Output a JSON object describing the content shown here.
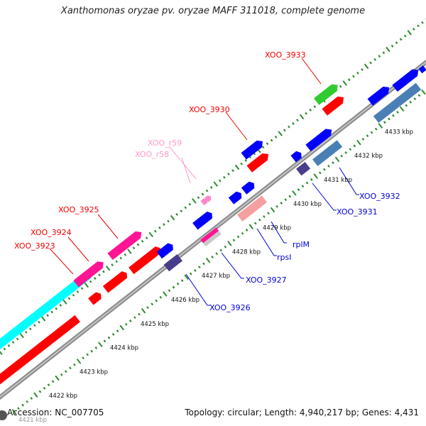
{
  "title": "Xanthomonas oryzae pv. oryzae MAFF 311018, complete genome",
  "footer": {
    "accession": "Accession: NC_007705",
    "summary": "Topology: circular; Length: 4,940,217 bp; Genes: 4,431"
  },
  "scale_labels": [
    "4421 kbp",
    "4422 kbp",
    "4423 kbp",
    "4424 kbp",
    "4425 kbp",
    "4426 kbp",
    "4427 kbp",
    "4428 kbp",
    "4429 kbp",
    "4430 kbp",
    "4431 kbp",
    "4432 kbp",
    "4433 kbp"
  ],
  "gene_labels": {
    "XOO_3923": "XOO_3923",
    "XOO_3924": "XOO_3924",
    "XOO_3925": "XOO_3925",
    "XOO_r58": "XOO_r58",
    "XOO_r59": "XOO_r59",
    "XOO_3930": "XOO_3930",
    "XOO_3933": "XOO_3933",
    "XOO_3926": "XOO_3926",
    "XOO_3927": "XOO_3927",
    "rpsI": "rpsI",
    "rplM": "rplM",
    "XOO_3931": "XOO_3931",
    "XOO_3932": "XOO_3932"
  },
  "colors": {
    "backbone": "#8a8a8a",
    "tick": "#2e8b2e",
    "blue": "#0000ff",
    "dark_purple": "#483d8b",
    "steel_blue": "#4a7fb5",
    "red": "#ff0000",
    "magenta": "#ff1493",
    "pink_light": "#f4a0a0",
    "cyan": "#00ffff",
    "green": "#2ecc2e",
    "rna_pink": "#ff88c8",
    "label_red": "#ee0000",
    "label_blue": "#0000dd",
    "label_pink": "#ff99cc"
  }
}
